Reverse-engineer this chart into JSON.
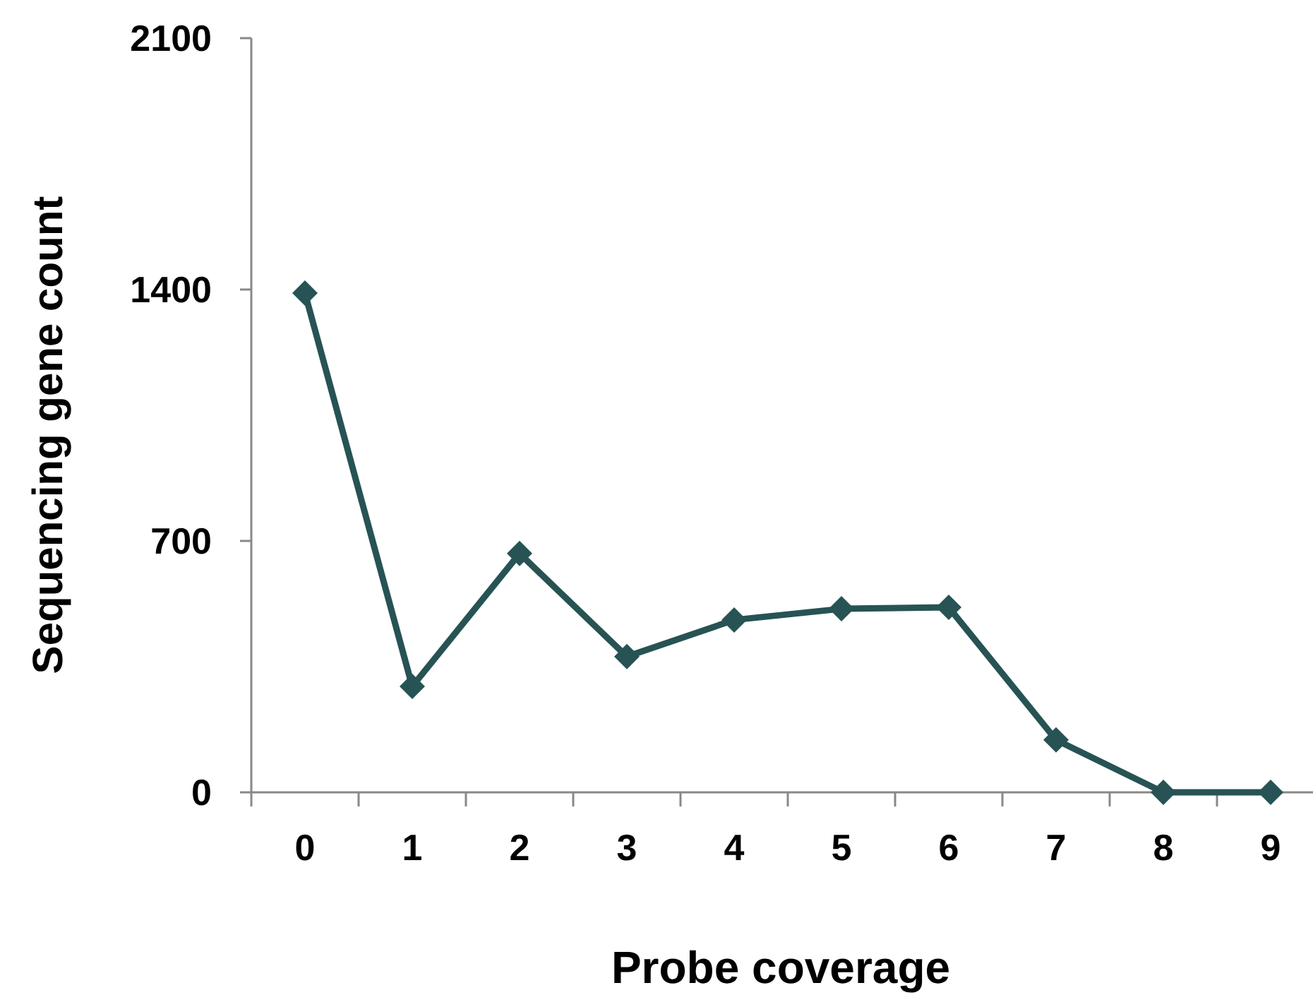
{
  "chart_data": {
    "type": "line",
    "xlabel": "Probe coverage",
    "ylabel": "Sequencing gene count",
    "categories": [
      "0",
      "1",
      "2",
      "3",
      "4",
      "5",
      "6",
      "7",
      "8",
      "9"
    ],
    "series": [
      {
        "color": "#275354",
        "values": [
          1390,
          295,
          665,
          378,
          480,
          511,
          515,
          146,
          0,
          0
        ]
      }
    ],
    "ylim": [
      0,
      2100
    ],
    "yticks": [
      0,
      700,
      1400,
      2100
    ],
    "grid": false,
    "marker": "diamond",
    "line_style": "solid"
  }
}
